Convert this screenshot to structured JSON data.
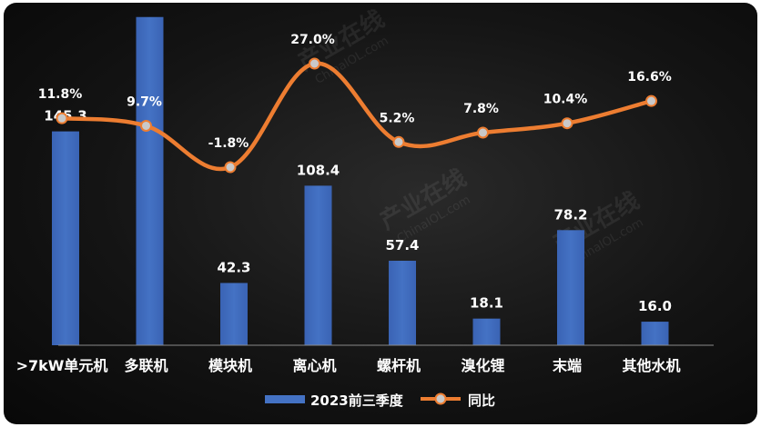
{
  "chart_data": {
    "type": "bar",
    "categories": [
      ">7kW单元机",
      "多联机",
      "模块机",
      "离心机",
      "螺杆机",
      "溴化锂",
      "末端",
      "其他水机"
    ],
    "series": [
      {
        "name": "2023前三季度",
        "type": "bar",
        "values": [
          145.3,
          223.0,
          42.3,
          108.4,
          57.4,
          18.1,
          78.2,
          16.0
        ],
        "labels": [
          "145.3",
          "",
          "42.3",
          "108.4",
          "57.4",
          "18.1",
          "78.2",
          "16.0"
        ]
      },
      {
        "name": "同比",
        "type": "line",
        "values": [
          11.8,
          9.7,
          -1.8,
          27.0,
          5.2,
          7.8,
          10.4,
          16.6
        ],
        "labels": [
          "11.8%",
          "9.7%",
          "-1.8%",
          "27.0%",
          "5.2%",
          "7.8%",
          "10.4%",
          "16.6%"
        ]
      }
    ],
    "legend_position": "bottom-center",
    "grid": false,
    "colors": {
      "bar": "#4472c4",
      "line": "#ed7d31",
      "marker_fill": "#c9c9c9",
      "text": "#ffffff",
      "background": "#111111"
    }
  },
  "watermark": {
    "brand": "产业在线",
    "domain": "ChinaIOL.com"
  }
}
